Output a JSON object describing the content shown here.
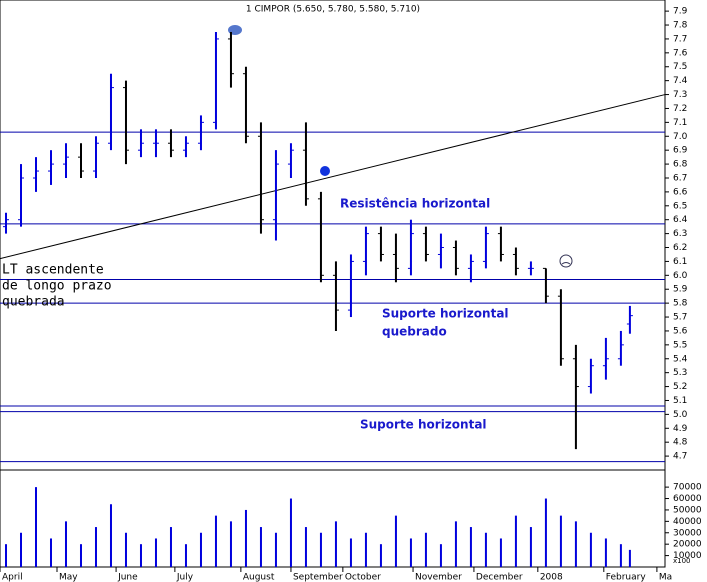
{
  "chart_data": {
    "type": "ohlc",
    "title": "1 CIMPOR (5.650, 5.780, 5.580, 5.710)",
    "x": [
      2,
      7,
      12,
      17,
      22,
      27,
      32,
      37,
      42,
      47,
      52,
      57,
      62,
      67,
      72,
      77,
      82,
      87,
      92,
      97,
      102,
      107,
      112,
      117,
      122,
      127,
      132,
      137,
      142,
      147,
      152,
      157,
      162,
      167,
      172,
      177,
      182,
      187,
      192,
      197,
      202,
      207,
      210
    ],
    "open": [
      6.35,
      6.4,
      6.7,
      6.75,
      6.8,
      6.85,
      6.75,
      6.95,
      7.35,
      6.9,
      6.95,
      6.95,
      6.9,
      6.95,
      7.1,
      7.7,
      7.45,
      7.0,
      6.4,
      6.8,
      6.9,
      6.55,
      6.0,
      5.75,
      6.1,
      6.3,
      6.15,
      6.05,
      6.3,
      6.15,
      6.2,
      6.05,
      6.1,
      6.3,
      6.15,
      6.05,
      6.05,
      5.85,
      5.4,
      5.2,
      5.35,
      5.4,
      5.65
    ],
    "high": [
      6.45,
      6.8,
      6.85,
      6.9,
      6.95,
      6.95,
      7.0,
      7.45,
      7.4,
      7.05,
      7.05,
      7.05,
      7.0,
      7.15,
      7.75,
      7.75,
      7.5,
      7.1,
      6.9,
      6.95,
      7.1,
      6.6,
      6.1,
      6.15,
      6.35,
      6.35,
      6.3,
      6.4,
      6.35,
      6.3,
      6.25,
      6.15,
      6.35,
      6.35,
      6.2,
      6.1,
      6.05,
      5.9,
      5.5,
      5.4,
      5.55,
      5.6,
      5.78
    ],
    "low": [
      6.3,
      6.35,
      6.6,
      6.65,
      6.7,
      6.7,
      6.7,
      6.9,
      6.8,
      6.85,
      6.85,
      6.85,
      6.85,
      6.9,
      7.05,
      7.35,
      6.95,
      6.3,
      6.25,
      6.7,
      6.5,
      5.95,
      5.6,
      5.7,
      6.0,
      6.1,
      5.95,
      6.0,
      6.1,
      6.05,
      6.0,
      5.95,
      6.05,
      6.1,
      6.0,
      6.0,
      5.8,
      5.35,
      4.75,
      5.15,
      5.25,
      5.35,
      5.58
    ],
    "close": [
      6.4,
      6.7,
      6.75,
      6.8,
      6.85,
      6.75,
      6.95,
      7.35,
      6.9,
      6.95,
      6.95,
      6.9,
      6.95,
      7.1,
      7.7,
      7.45,
      7.0,
      6.4,
      6.8,
      6.9,
      6.55,
      6.0,
      5.75,
      6.1,
      6.3,
      6.15,
      6.05,
      6.3,
      6.15,
      6.2,
      6.05,
      6.1,
      6.3,
      6.15,
      6.05,
      6.05,
      5.85,
      5.4,
      5.2,
      5.35,
      5.4,
      5.5,
      5.71
    ],
    "volume": [
      20000,
      30000,
      70000,
      25000,
      40000,
      20000,
      35000,
      55000,
      30000,
      20000,
      25000,
      35000,
      20000,
      30000,
      45000,
      40000,
      50000,
      35000,
      30000,
      60000,
      35000,
      30000,
      40000,
      25000,
      30000,
      20000,
      45000,
      25000,
      30000,
      20000,
      40000,
      35000,
      30000,
      25000,
      45000,
      35000,
      60000,
      45000,
      40000,
      30000,
      25000,
      20000,
      15000
    ],
    "up_color": "#0000dd",
    "down_color": "#000000",
    "xlim": [
      0,
      221.7
    ],
    "xticks": [
      {
        "value": 0,
        "label": "April"
      },
      {
        "value": 19,
        "label": "May"
      },
      {
        "value": 38.7,
        "label": "June"
      },
      {
        "value": 58.3,
        "label": "July"
      },
      {
        "value": 80.3,
        "label": "August"
      },
      {
        "value": 97,
        "label": "September"
      },
      {
        "value": 114.3,
        "label": "October"
      },
      {
        "value": 137.7,
        "label": "November"
      },
      {
        "value": 158,
        "label": "December"
      },
      {
        "value": 179.3,
        "label": "2008"
      },
      {
        "value": 201.3,
        "label": "February"
      },
      {
        "value": 219,
        "label": "Ma"
      }
    ],
    "ylim": [
      4.6,
      7.98
    ],
    "yticks": [
      4.7,
      4.8,
      4.9,
      {
        "value": 5,
        "label": "5.0"
      },
      5.1,
      5.2,
      5.3,
      5.4,
      5.5,
      5.6,
      5.7,
      5.8,
      5.9,
      {
        "value": 6,
        "label": "6.0"
      },
      6.1,
      6.2,
      6.3,
      6.4,
      6.5,
      6.6,
      6.7,
      6.8,
      6.9,
      {
        "value": 7,
        "label": "7.0"
      },
      7.1,
      7.2,
      7.3,
      7.4,
      7.5,
      7.6,
      7.7,
      7.8,
      7.9
    ],
    "volume_ylim": [
      0,
      85000
    ],
    "volume_yticks": [
      10000,
      20000,
      30000,
      40000,
      50000,
      60000,
      70000
    ],
    "volume_unit_label": "x100",
    "hlines": [
      7.03,
      6.37,
      5.97,
      5.8,
      5.06,
      5.02,
      4.66
    ],
    "hline_color": "#0000aa",
    "trendline": {
      "x": [
        0,
        221.7
      ],
      "y": [
        6.12,
        7.3
      ]
    },
    "annotations": [
      {
        "lines": [
          "Resistência horizontal"
        ]
      },
      {
        "lines": [
          "LT ascendente",
          "de longo prazo",
          "quebrada"
        ]
      },
      {
        "lines": [
          "Suporte horizontal",
          "quebrado"
        ]
      },
      {
        "lines": [
          "Suporte horizontal"
        ]
      }
    ]
  }
}
